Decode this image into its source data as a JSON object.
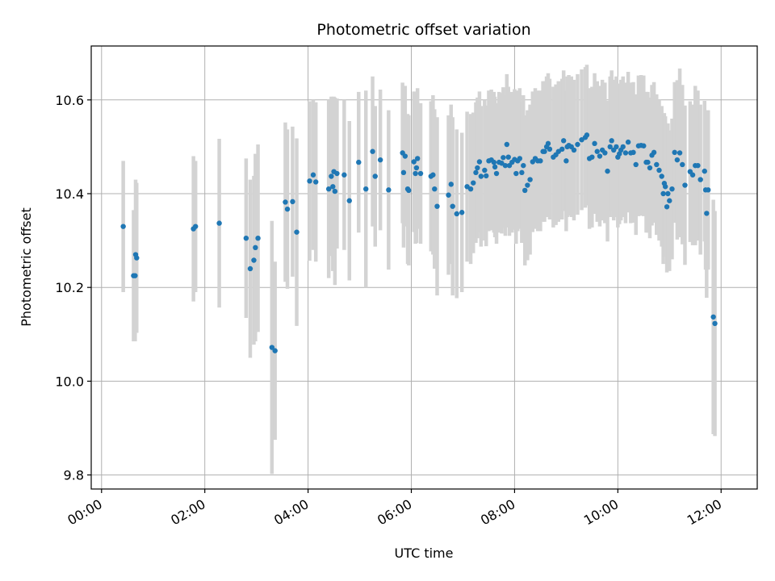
{
  "chart_data": {
    "type": "scatter",
    "title": "Photometric offset variation",
    "xlabel": "UTC time",
    "ylabel": "Photometric offset",
    "x_unit": "hours UTC",
    "xlim": [
      -0.2,
      12.7
    ],
    "ylim": [
      9.77,
      10.715
    ],
    "x_ticks": [
      0,
      2,
      4,
      6,
      8,
      10,
      12
    ],
    "x_tick_labels": [
      "00:00",
      "02:00",
      "04:00",
      "06:00",
      "08:00",
      "10:00",
      "12:00"
    ],
    "y_ticks": [
      9.8,
      10.0,
      10.2,
      10.4,
      10.6
    ],
    "y_tick_labels": [
      "9.8",
      "10.0",
      "10.2",
      "10.4",
      "10.6"
    ],
    "grid": true,
    "marker_color": "#1f77b4",
    "errorbar_color": "#d3d3d3",
    "points": [
      [
        0.42,
        10.33,
        0.14
      ],
      [
        0.62,
        10.225,
        0.14
      ],
      [
        0.65,
        10.225,
        0.14
      ],
      [
        0.66,
        10.27,
        0.16
      ],
      [
        0.68,
        10.263,
        0.16
      ],
      [
        1.78,
        10.325,
        0.155
      ],
      [
        1.82,
        10.33,
        0.14
      ],
      [
        2.28,
        10.337,
        0.18
      ],
      [
        2.8,
        10.305,
        0.17
      ],
      [
        2.88,
        10.24,
        0.19
      ],
      [
        2.95,
        10.258,
        0.18
      ],
      [
        2.98,
        10.285,
        0.2
      ],
      [
        3.03,
        10.305,
        0.2
      ],
      [
        3.3,
        10.072,
        0.27
      ],
      [
        3.36,
        10.065,
        0.19
      ],
      [
        3.56,
        10.382,
        0.17
      ],
      [
        3.6,
        10.367,
        0.17
      ],
      [
        3.7,
        10.383,
        0.16
      ],
      [
        3.78,
        10.318,
        0.2
      ],
      [
        4.03,
        10.427,
        0.17
      ],
      [
        4.1,
        10.44,
        0.16
      ],
      [
        4.15,
        10.425,
        0.17
      ],
      [
        4.4,
        10.41,
        0.19
      ],
      [
        4.45,
        10.437,
        0.17
      ],
      [
        4.48,
        10.415,
        0.18
      ],
      [
        4.5,
        10.447,
        0.16
      ],
      [
        4.52,
        10.405,
        0.2
      ],
      [
        4.56,
        10.443,
        0.16
      ],
      [
        4.7,
        10.44,
        0.16
      ],
      [
        4.8,
        10.385,
        0.17
      ],
      [
        4.98,
        10.467,
        0.15
      ],
      [
        5.12,
        10.41,
        0.21
      ],
      [
        5.25,
        10.49,
        0.16
      ],
      [
        5.3,
        10.437,
        0.15
      ],
      [
        5.4,
        10.472,
        0.15
      ],
      [
        5.56,
        10.408,
        0.17
      ],
      [
        5.83,
        10.487,
        0.15
      ],
      [
        5.85,
        10.445,
        0.16
      ],
      [
        5.88,
        10.48,
        0.15
      ],
      [
        5.93,
        10.41,
        0.16
      ],
      [
        5.95,
        10.407,
        0.16
      ],
      [
        6.05,
        10.468,
        0.15
      ],
      [
        6.08,
        10.443,
        0.15
      ],
      [
        6.1,
        10.455,
        0.16
      ],
      [
        6.12,
        10.475,
        0.15
      ],
      [
        6.18,
        10.443,
        0.15
      ],
      [
        6.38,
        10.437,
        0.16
      ],
      [
        6.42,
        10.44,
        0.17
      ],
      [
        6.45,
        10.41,
        0.17
      ],
      [
        6.5,
        10.373,
        0.19
      ],
      [
        6.72,
        10.397,
        0.17
      ],
      [
        6.77,
        10.42,
        0.17
      ],
      [
        6.8,
        10.373,
        0.19
      ],
      [
        6.88,
        10.357,
        0.18
      ],
      [
        6.98,
        10.36,
        0.17
      ],
      [
        7.08,
        10.415,
        0.16
      ],
      [
        7.15,
        10.41,
        0.16
      ],
      [
        7.2,
        10.423,
        0.15
      ],
      [
        7.25,
        10.445,
        0.15
      ],
      [
        7.28,
        10.455,
        0.15
      ],
      [
        7.32,
        10.468,
        0.15
      ],
      [
        7.35,
        10.437,
        0.15
      ],
      [
        7.42,
        10.45,
        0.15
      ],
      [
        7.45,
        10.438,
        0.15
      ],
      [
        7.5,
        10.47,
        0.15
      ],
      [
        7.55,
        10.472,
        0.15
      ],
      [
        7.6,
        10.467,
        0.15
      ],
      [
        7.62,
        10.457,
        0.15
      ],
      [
        7.65,
        10.443,
        0.15
      ],
      [
        7.7,
        10.467,
        0.15
      ],
      [
        7.75,
        10.465,
        0.15
      ],
      [
        7.78,
        10.477,
        0.15
      ],
      [
        7.82,
        10.46,
        0.15
      ],
      [
        7.85,
        10.505,
        0.15
      ],
      [
        7.88,
        10.478,
        0.15
      ],
      [
        7.9,
        10.46,
        0.15
      ],
      [
        7.95,
        10.467,
        0.15
      ],
      [
        8.0,
        10.473,
        0.15
      ],
      [
        8.03,
        10.443,
        0.15
      ],
      [
        8.06,
        10.47,
        0.15
      ],
      [
        8.1,
        10.475,
        0.15
      ],
      [
        8.14,
        10.445,
        0.15
      ],
      [
        8.17,
        10.46,
        0.15
      ],
      [
        8.2,
        10.407,
        0.16
      ],
      [
        8.25,
        10.418,
        0.16
      ],
      [
        8.3,
        10.43,
        0.16
      ],
      [
        8.35,
        10.468,
        0.15
      ],
      [
        8.4,
        10.475,
        0.15
      ],
      [
        8.45,
        10.47,
        0.15
      ],
      [
        8.5,
        10.47,
        0.15
      ],
      [
        8.55,
        10.49,
        0.15
      ],
      [
        8.58,
        10.49,
        0.15
      ],
      [
        8.62,
        10.5,
        0.15
      ],
      [
        8.65,
        10.507,
        0.15
      ],
      [
        8.68,
        10.495,
        0.15
      ],
      [
        8.75,
        10.478,
        0.15
      ],
      [
        8.8,
        10.483,
        0.15
      ],
      [
        8.85,
        10.49,
        0.15
      ],
      [
        8.92,
        10.495,
        0.15
      ],
      [
        8.95,
        10.513,
        0.15
      ],
      [
        9.0,
        10.47,
        0.15
      ],
      [
        9.02,
        10.5,
        0.15
      ],
      [
        9.05,
        10.503,
        0.15
      ],
      [
        9.1,
        10.5,
        0.15
      ],
      [
        9.15,
        10.493,
        0.15
      ],
      [
        9.22,
        10.505,
        0.15
      ],
      [
        9.3,
        10.515,
        0.15
      ],
      [
        9.37,
        10.52,
        0.15
      ],
      [
        9.4,
        10.525,
        0.15
      ],
      [
        9.45,
        10.475,
        0.15
      ],
      [
        9.5,
        10.478,
        0.15
      ],
      [
        9.55,
        10.507,
        0.15
      ],
      [
        9.6,
        10.49,
        0.15
      ],
      [
        9.65,
        10.48,
        0.15
      ],
      [
        9.7,
        10.493,
        0.15
      ],
      [
        9.75,
        10.487,
        0.15
      ],
      [
        9.8,
        10.448,
        0.15
      ],
      [
        9.85,
        10.5,
        0.15
      ],
      [
        9.88,
        10.513,
        0.15
      ],
      [
        9.92,
        10.493,
        0.15
      ],
      [
        9.97,
        10.5,
        0.15
      ],
      [
        10.0,
        10.478,
        0.15
      ],
      [
        10.03,
        10.485,
        0.15
      ],
      [
        10.06,
        10.493,
        0.15
      ],
      [
        10.1,
        10.5,
        0.15
      ],
      [
        10.15,
        10.487,
        0.15
      ],
      [
        10.2,
        10.51,
        0.15
      ],
      [
        10.25,
        10.487,
        0.15
      ],
      [
        10.3,
        10.488,
        0.15
      ],
      [
        10.35,
        10.462,
        0.15
      ],
      [
        10.4,
        10.502,
        0.15
      ],
      [
        10.45,
        10.503,
        0.15
      ],
      [
        10.5,
        10.502,
        0.15
      ],
      [
        10.55,
        10.467,
        0.15
      ],
      [
        10.58,
        10.467,
        0.15
      ],
      [
        10.62,
        10.455,
        0.15
      ],
      [
        10.66,
        10.482,
        0.15
      ],
      [
        10.7,
        10.488,
        0.15
      ],
      [
        10.75,
        10.462,
        0.15
      ],
      [
        10.8,
        10.45,
        0.15
      ],
      [
        10.85,
        10.437,
        0.15
      ],
      [
        10.88,
        10.4,
        0.15
      ],
      [
        10.9,
        10.422,
        0.15
      ],
      [
        10.92,
        10.415,
        0.15
      ],
      [
        10.95,
        10.372,
        0.14
      ],
      [
        10.97,
        10.4,
        0.15
      ],
      [
        11.0,
        10.385,
        0.15
      ],
      [
        11.05,
        10.41,
        0.15
      ],
      [
        11.1,
        10.488,
        0.15
      ],
      [
        11.15,
        10.472,
        0.17
      ],
      [
        11.2,
        10.487,
        0.18
      ],
      [
        11.25,
        10.462,
        0.17
      ],
      [
        11.3,
        10.418,
        0.17
      ],
      [
        11.4,
        10.447,
        0.15
      ],
      [
        11.45,
        10.44,
        0.15
      ],
      [
        11.5,
        10.46,
        0.17
      ],
      [
        11.55,
        10.46,
        0.16
      ],
      [
        11.6,
        10.43,
        0.16
      ],
      [
        11.68,
        10.448,
        0.15
      ],
      [
        11.7,
        10.408,
        0.17
      ],
      [
        11.72,
        10.358,
        0.18
      ],
      [
        11.75,
        10.408,
        0.17
      ],
      [
        11.85,
        10.137,
        0.25
      ],
      [
        11.88,
        10.123,
        0.24
      ]
    ]
  }
}
